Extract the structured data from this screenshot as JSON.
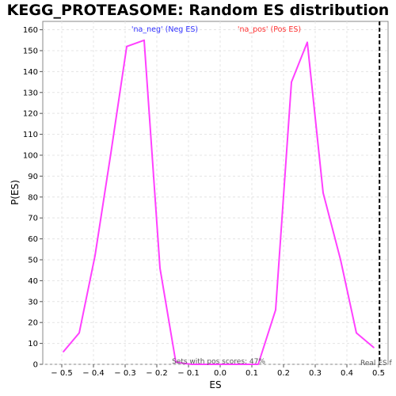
{
  "chart_data": {
    "type": "line",
    "title": "KEGG_PROTEASOME: Random ES distribution",
    "xlabel": "ES",
    "ylabel": "P(ES)",
    "xlim": [
      -0.56,
      0.53
    ],
    "ylim": [
      0,
      164
    ],
    "x_ticks": [
      -0.5,
      -0.4,
      -0.3,
      -0.2,
      -0.1,
      0.0,
      0.1,
      0.2,
      0.3,
      0.4,
      0.5
    ],
    "x_tick_labels": [
      "− 0.5",
      "− 0.4",
      "− 0.3",
      "− 0.2",
      "− 0.1",
      "0.0",
      "0.1",
      "0.2",
      "0.3",
      "0.4",
      "0.5"
    ],
    "y_ticks": [
      0,
      10,
      20,
      30,
      40,
      50,
      60,
      70,
      80,
      90,
      100,
      110,
      120,
      130,
      140,
      150,
      160
    ],
    "grid": true,
    "series": [
      {
        "color": "#ff40ff",
        "x": [
          -0.495,
          -0.445,
          -0.395,
          -0.345,
          -0.295,
          -0.24,
          -0.19,
          -0.14,
          -0.09,
          -0.04,
          0.01,
          0.06,
          0.12,
          0.175,
          0.225,
          0.275,
          0.325,
          0.38,
          0.43,
          0.485
        ],
        "y": [
          6,
          15,
          52,
          101,
          152,
          155,
          46,
          1,
          0,
          0,
          0,
          0,
          0,
          26,
          135,
          154,
          82,
          50,
          15,
          8
        ]
      }
    ],
    "annotations": {
      "neg_label": "'na_neg' (Neg ES)",
      "pos_label": "'na_pos' (Pos ES)",
      "pos_scores": "Sets with pos scores: 47%",
      "real_es": "Real ES f"
    },
    "real_es_value": 0.503,
    "colors": {
      "neg_label": "#3333ff",
      "pos_label": "#ff3333",
      "real_es_line": "#000000",
      "grid": "#e4e4e4"
    }
  }
}
